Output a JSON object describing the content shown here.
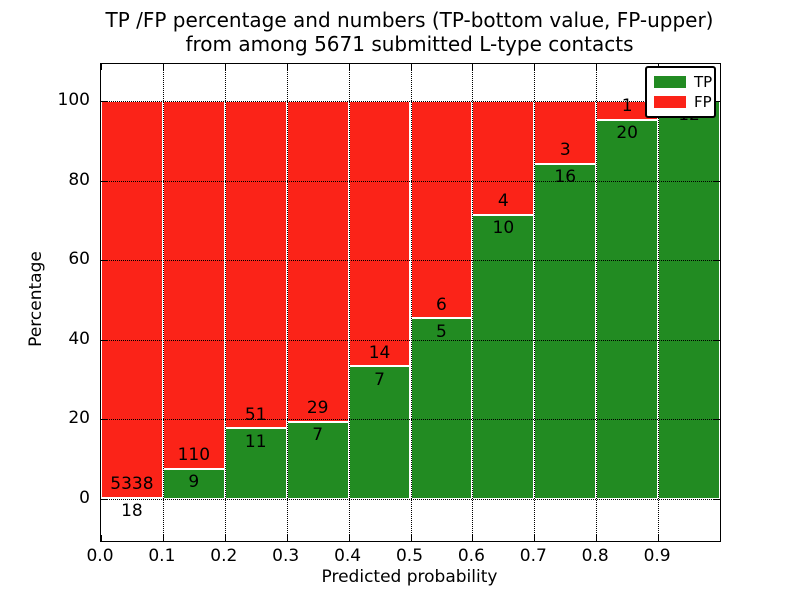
{
  "chart_data": {
    "type": "bar",
    "stacked": true,
    "title_line1": "TP /FP percentage and numbers (TP-bottom value, FP-upper)",
    "title_line2": "from among 5671 submitted L-type contacts",
    "xlabel": "Predicted probability",
    "ylabel": "Percentage",
    "x_tick_labels": [
      "0.0",
      "0.1",
      "0.2",
      "0.3",
      "0.4",
      "0.5",
      "0.6",
      "0.7",
      "0.8",
      "0.9"
    ],
    "y_tick_values": [
      0,
      20,
      40,
      60,
      80,
      100
    ],
    "xlim": [
      0.0,
      1.0
    ],
    "ylim": [
      -10.5,
      110
    ],
    "grid": "dotted",
    "legend": {
      "position": "upper right",
      "entries": [
        {
          "label": "TP",
          "color": "#228b22"
        },
        {
          "label": "FP",
          "color": "#fb2318"
        }
      ]
    },
    "series": [
      {
        "name": "TP",
        "color": "#228b22",
        "values": [
          18,
          9,
          11,
          7,
          7,
          5,
          10,
          16,
          20,
          12
        ]
      },
      {
        "name": "FP",
        "color": "#fb2318",
        "values": [
          5338,
          110,
          51,
          29,
          14,
          6,
          4,
          3,
          1,
          0
        ]
      }
    ],
    "bins": [
      {
        "x_range": "0.0-0.1",
        "tp": 18,
        "fp": 5338,
        "tp_pct": 0.34
      },
      {
        "x_range": "0.1-0.2",
        "tp": 9,
        "fp": 110,
        "tp_pct": 7.56
      },
      {
        "x_range": "0.2-0.3",
        "tp": 11,
        "fp": 51,
        "tp_pct": 17.74
      },
      {
        "x_range": "0.3-0.4",
        "tp": 7,
        "fp": 29,
        "tp_pct": 19.44
      },
      {
        "x_range": "0.4-0.5",
        "tp": 7,
        "fp": 14,
        "tp_pct": 33.33
      },
      {
        "x_range": "0.5-0.6",
        "tp": 5,
        "fp": 6,
        "tp_pct": 45.45
      },
      {
        "x_range": "0.6-0.7",
        "tp": 10,
        "fp": 4,
        "tp_pct": 71.43
      },
      {
        "x_range": "0.7-0.8",
        "tp": 16,
        "fp": 3,
        "tp_pct": 84.21
      },
      {
        "x_range": "0.8-0.9",
        "tp": 20,
        "fp": 1,
        "tp_pct": 95.24
      },
      {
        "x_range": "0.9-1.0",
        "tp": 12,
        "fp": 0,
        "tp_pct": 100.0
      }
    ]
  },
  "colors": {
    "tp": "#228b22",
    "fp": "#fb2318",
    "background": "#ffffff",
    "grid": "#000000"
  }
}
